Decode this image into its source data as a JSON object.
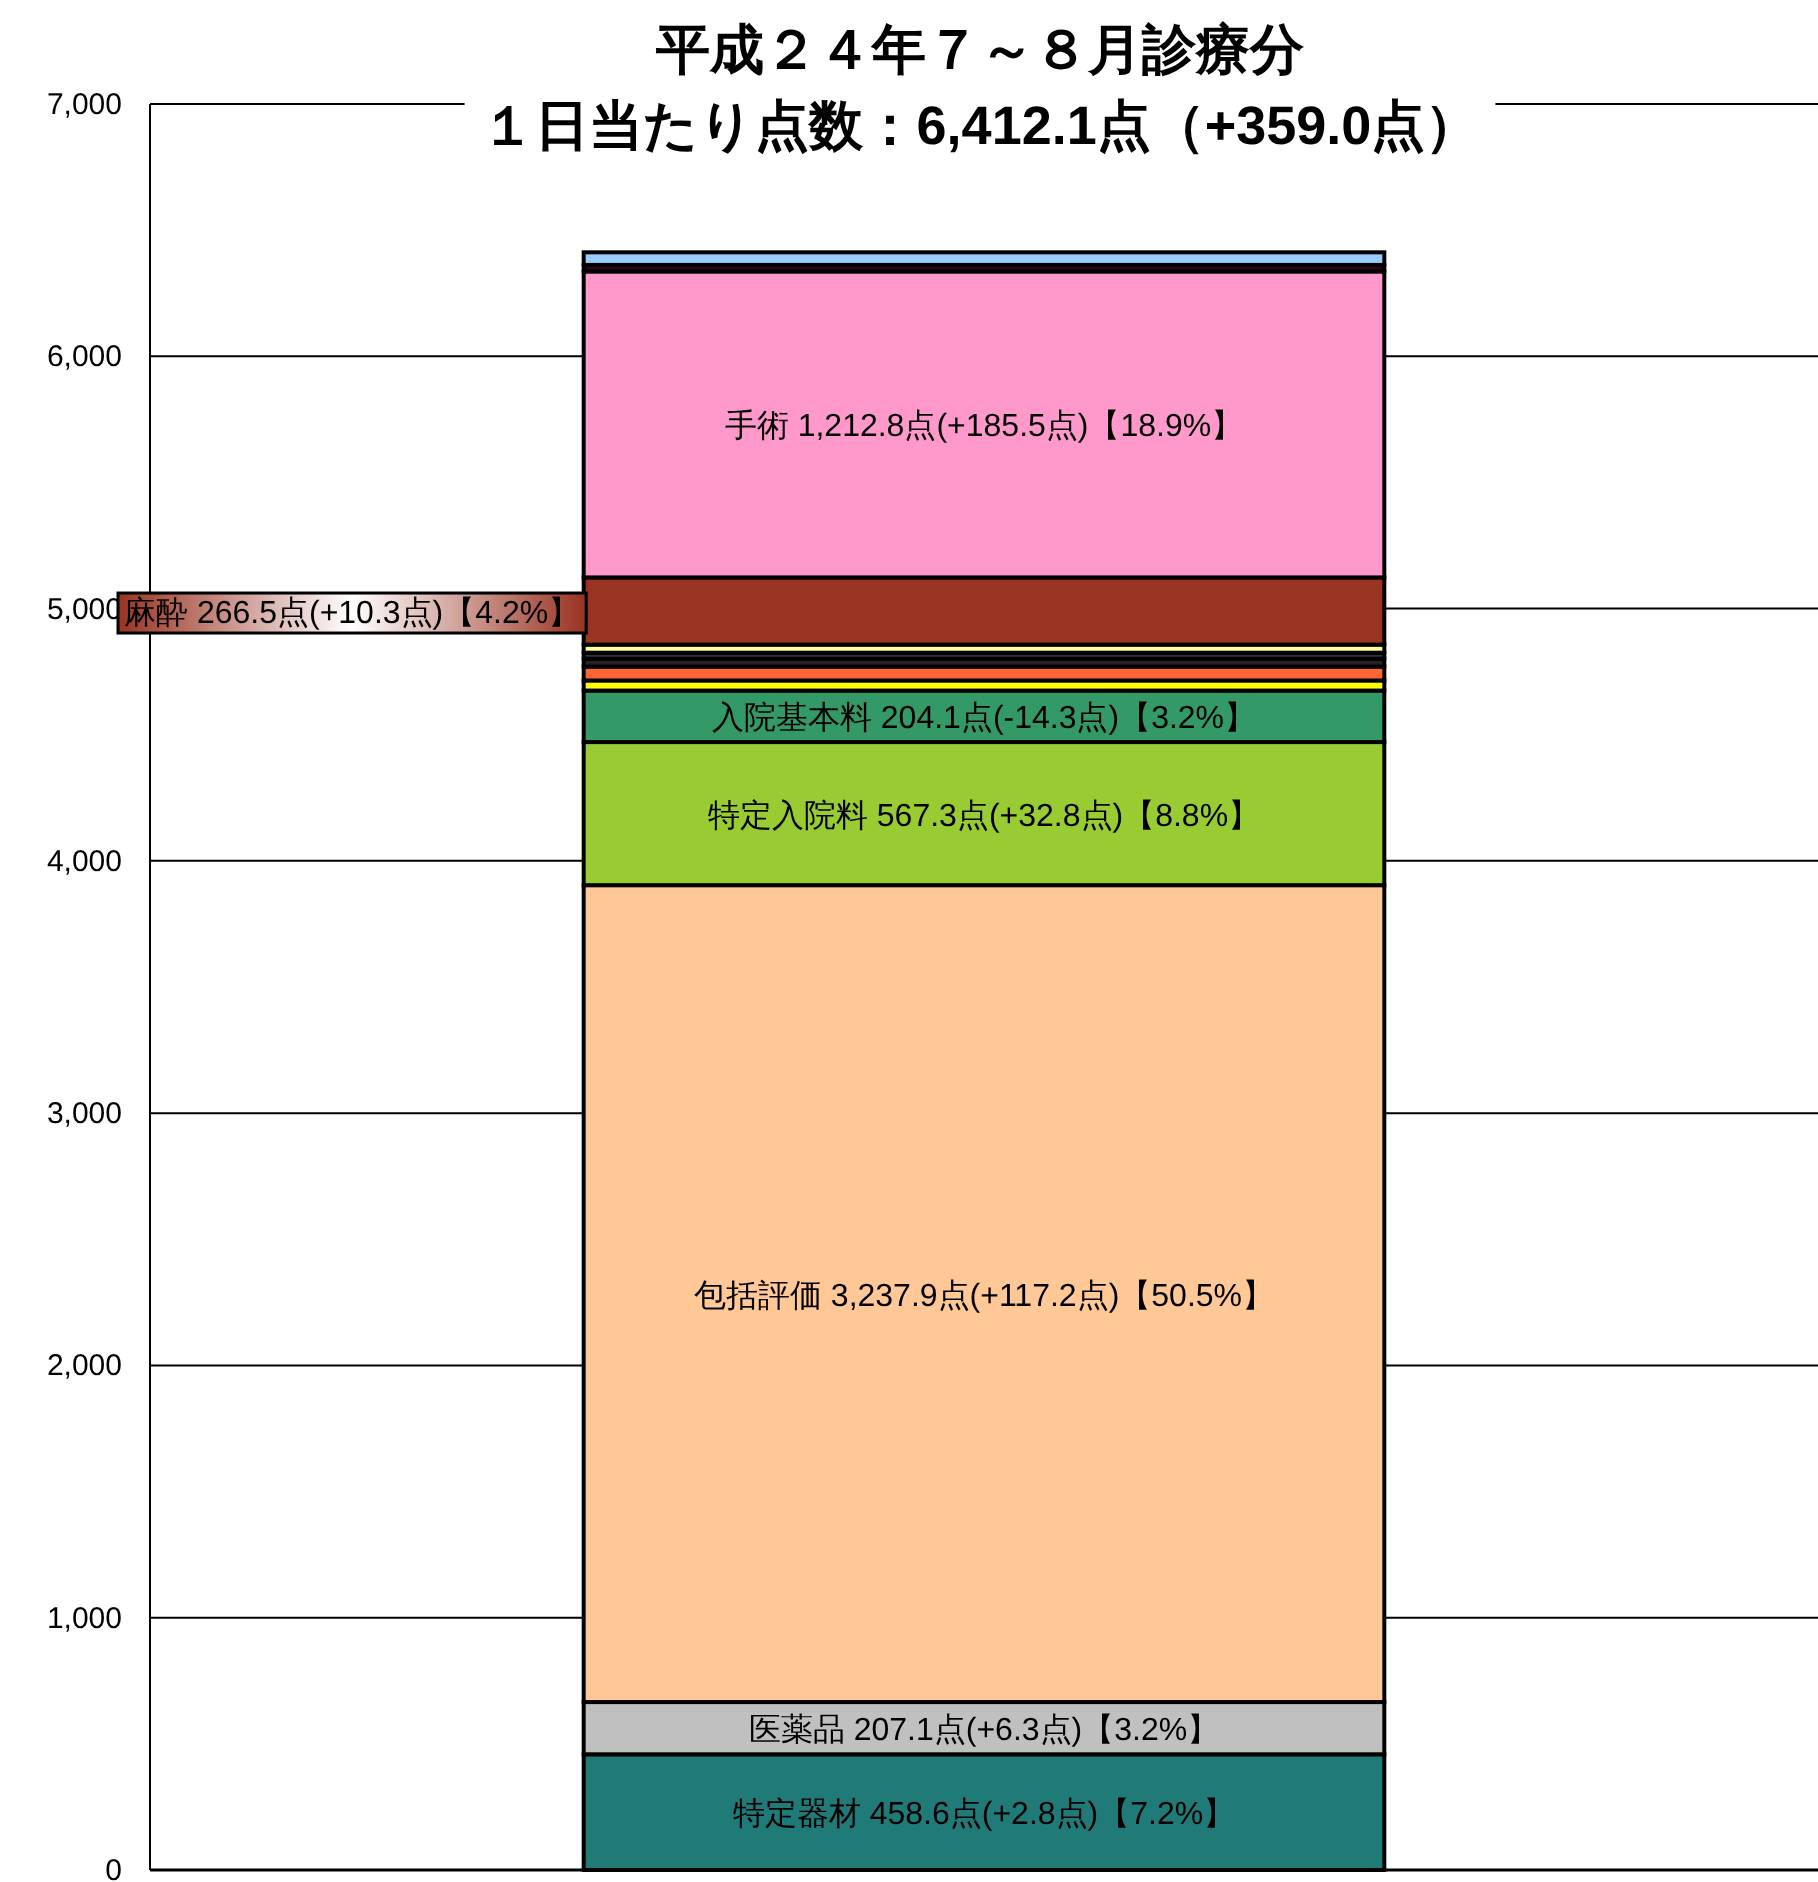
{
  "chart_data": {
    "type": "bar",
    "stacked": true,
    "title": "平成２４年７～８月診療分",
    "subtitle": "１日当たり点数：6,412.1点（+359.0点）",
    "categories": [
      null
    ],
    "ylim": [
      0,
      7000
    ],
    "yticks": [
      0,
      {
        "value": 1000,
        "label": "1,000"
      },
      {
        "value": 2000,
        "label": "2,000"
      },
      {
        "value": 3000,
        "label": "3,000"
      },
      {
        "value": 4000,
        "label": "4,000"
      },
      {
        "value": 5000,
        "label": "5,000"
      },
      {
        "value": 6000,
        "label": "6,000"
      },
      {
        "value": 7000,
        "label": "7,000"
      }
    ],
    "grid": "y",
    "series": [
      {
        "name": "特定器材",
        "color": "#1f7a78",
        "values": [
          458.6
        ],
        "value_labels": [
          "458.6点(+2.8点)【7.2%】"
        ]
      },
      {
        "name": "医薬品",
        "color": "#c0c0c0",
        "values": [
          207.1
        ],
        "value_labels": [
          "207.1点(+6.3点)【3.2%】"
        ]
      },
      {
        "name": "包括評価",
        "color": "#ffc896",
        "values": [
          3237.9
        ],
        "value_labels": [
          "3,237.9点(+117.2点)【50.5%】"
        ]
      },
      {
        "name": "特定入院料",
        "color": "#99cc33",
        "values": [
          567.3
        ],
        "value_labels": [
          "567.3点(+32.8点)【8.8%】"
        ]
      },
      {
        "name": "入院基本料",
        "color": "#339966",
        "values": [
          204.1
        ],
        "value_labels": [
          "204.1点(-14.3点)【3.2%】"
        ]
      },
      {
        "color": "#ffff00",
        "values": [
          40
        ]
      },
      {
        "color": "#ff6633",
        "values": [
          55
        ]
      },
      {
        "color": "#222222",
        "values": [
          31
        ]
      },
      {
        "color": "#333333",
        "values": [
          24
        ]
      },
      {
        "color": "#ffff99",
        "values": [
          32
        ]
      },
      {
        "name": "麻酔",
        "color": "#993322",
        "values": [
          266.5
        ],
        "value_labels": [
          "266.5点(+10.3点)【4.2%】"
        ]
      },
      {
        "name": "手術",
        "color": "#ff99cc",
        "values": [
          1212.8
        ],
        "value_labels": [
          "1,212.8点(+185.5点)【18.9%】"
        ]
      },
      {
        "color": "#330022",
        "values": [
          25.8
        ]
      },
      {
        "color": "#99ccff",
        "values": [
          50
        ]
      }
    ]
  }
}
